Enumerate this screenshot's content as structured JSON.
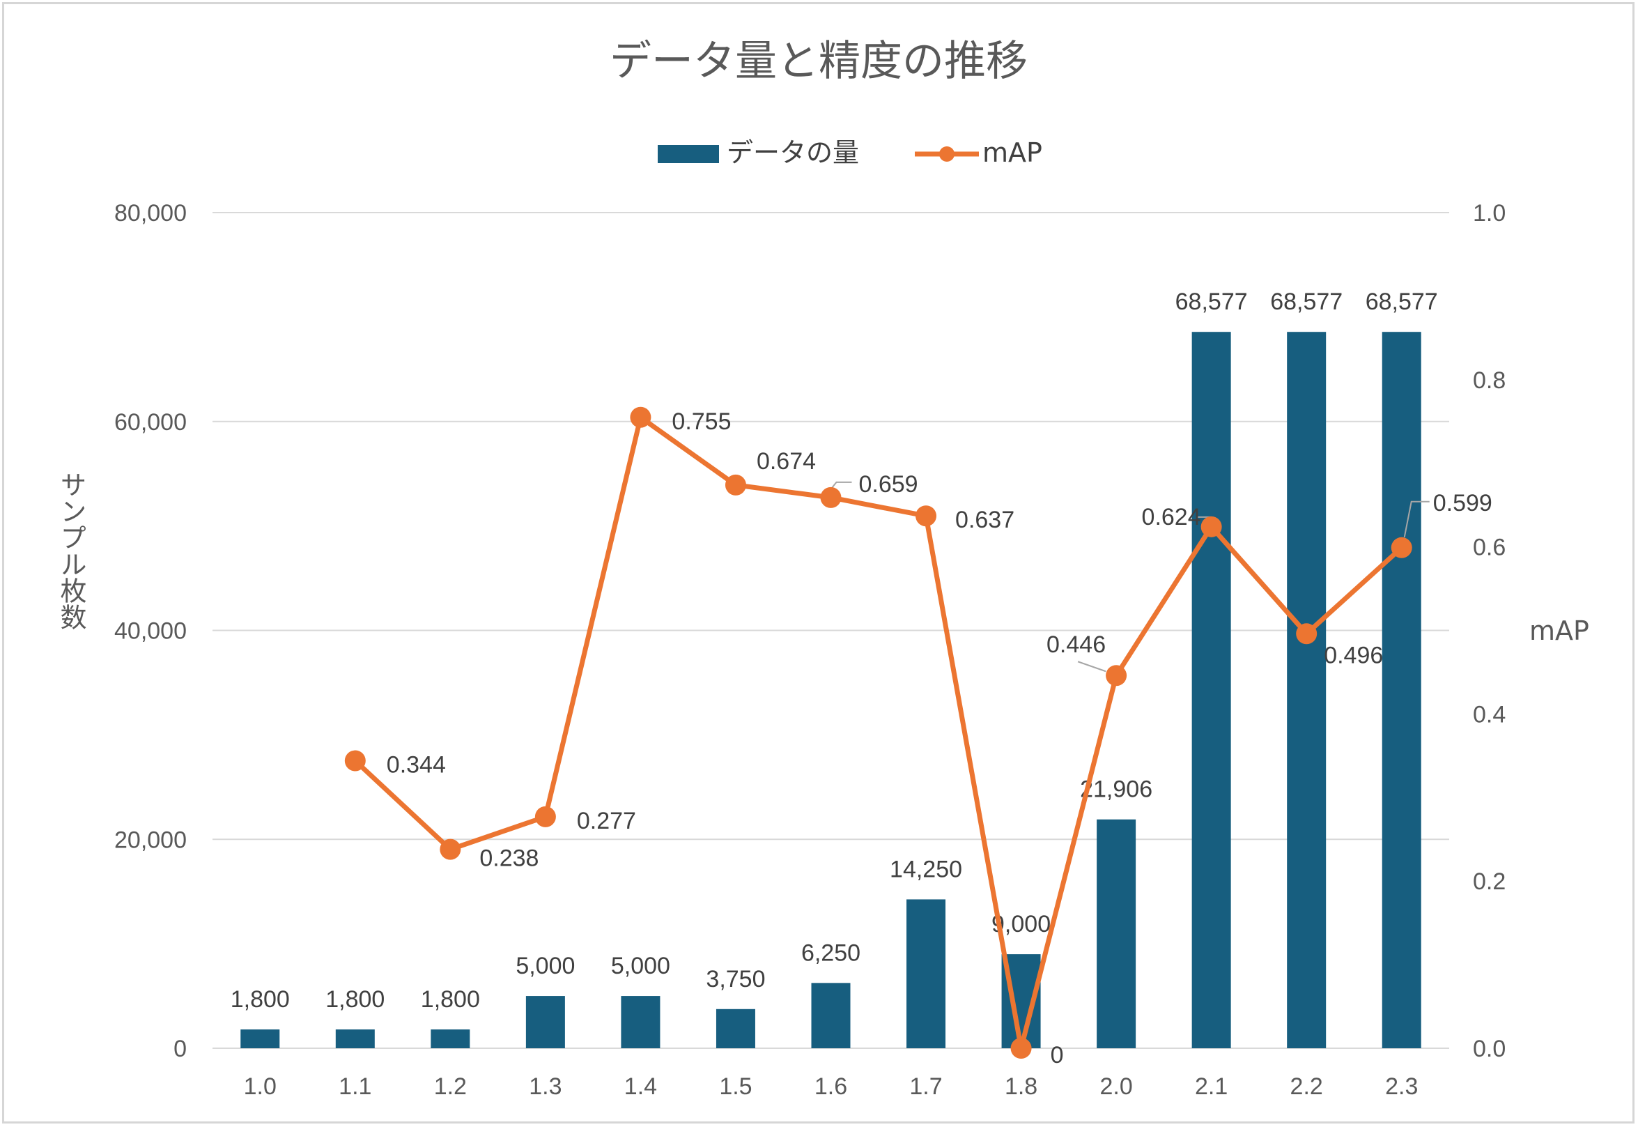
{
  "chart_data": {
    "type": "bar",
    "title": "データ量と精度の推移",
    "categories": [
      "1.0",
      "1.1",
      "1.2",
      "1.3",
      "1.4",
      "1.5",
      "1.6",
      "1.7",
      "1.8",
      "2.0",
      "2.1",
      "2.2",
      "2.3"
    ],
    "series": [
      {
        "name": "データの量",
        "type": "bar",
        "axis": "left",
        "color": "#175e7f",
        "values": [
          1800,
          1800,
          1800,
          5000,
          5000,
          3750,
          6250,
          14250,
          9000,
          21906,
          68577,
          68577,
          68577
        ],
        "labels": [
          "1,800",
          "1,800",
          "1,800",
          "5,000",
          "5,000",
          "3,750",
          "6,250",
          "14,250",
          "9,000",
          "21,906",
          "68,577",
          "68,577",
          "68,577"
        ]
      },
      {
        "name": "mAP",
        "type": "line",
        "axis": "right",
        "color": "#ec7531",
        "values": [
          null,
          0.344,
          0.238,
          0.277,
          0.755,
          0.674,
          0.659,
          0.637,
          0,
          0.446,
          0.624,
          0.496,
          0.599
        ],
        "labels": [
          "",
          "0.344",
          "0.238",
          "0.277",
          "0.755",
          "0.674",
          "0.659",
          "0.637",
          "0",
          "0.446",
          "0.624",
          "0.496",
          "0.599"
        ]
      }
    ],
    "y_left": {
      "label": "サンプル枚数",
      "ylim": [
        0,
        80000
      ],
      "ticks": [
        "0",
        "20,000",
        "40,000",
        "60,000",
        "80,000"
      ]
    },
    "y_right": {
      "label": "mAP",
      "ylim": [
        0,
        1.0
      ],
      "ticks": [
        "0.0",
        "0.2",
        "0.4",
        "0.6",
        "0.8",
        "1.0"
      ]
    },
    "grid": true,
    "legend_position": "top"
  }
}
